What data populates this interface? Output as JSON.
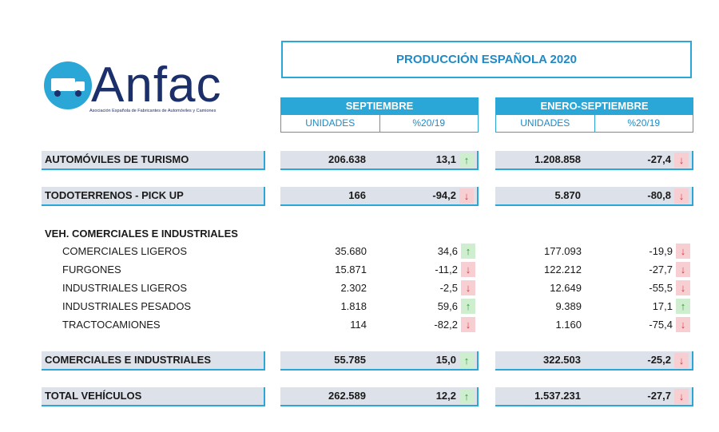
{
  "logo": {
    "name": "Anfac",
    "tagline": "Asociación Española de Fabricantes de Automóviles y Camiones"
  },
  "title": "PRODUCCIÓN ESPAÑOLA 2020",
  "groups": [
    {
      "label": "SEPTIEMBRE",
      "units": "UNIDADES",
      "pct": "%20/19"
    },
    {
      "label": "ENERO-SEPTIEMBRE",
      "units": "UNIDADES",
      "pct": "%20/19"
    }
  ],
  "colors": {
    "accent": "#2aa7d6",
    "band": "#dde1e9",
    "up": "#2e9a2e",
    "down": "#d9363e"
  },
  "rows": {
    "turismo": {
      "label": "AUTOMÓVILES DE TURISMO",
      "sep_units": "206.638",
      "sep_pct": "13,1",
      "sep_trend": "up",
      "ytd_units": "1.208.858",
      "ytd_pct": "-27,4",
      "ytd_trend": "down"
    },
    "todoterreno": {
      "label": "TODOTERRENOS - PICK UP",
      "sep_units": "166",
      "sep_pct": "-94,2",
      "sep_trend": "down",
      "ytd_units": "5.870",
      "ytd_pct": "-80,8",
      "ytd_trend": "down"
    },
    "vehcom_header": "VEH. COMERCIALES E INDUSTRIALES",
    "sub": [
      {
        "label": "COMERCIALES LIGEROS",
        "sep_units": "35.680",
        "sep_pct": "34,6",
        "sep_trend": "up",
        "ytd_units": "177.093",
        "ytd_pct": "-19,9",
        "ytd_trend": "down"
      },
      {
        "label": "FURGONES",
        "sep_units": "15.871",
        "sep_pct": "-11,2",
        "sep_trend": "down",
        "ytd_units": "122.212",
        "ytd_pct": "-27,7",
        "ytd_trend": "down"
      },
      {
        "label": "INDUSTRIALES LIGEROS",
        "sep_units": "2.302",
        "sep_pct": "-2,5",
        "sep_trend": "down",
        "ytd_units": "12.649",
        "ytd_pct": "-55,5",
        "ytd_trend": "down"
      },
      {
        "label": "INDUSTRIALES PESADOS",
        "sep_units": "1.818",
        "sep_pct": "59,6",
        "sep_trend": "up",
        "ytd_units": "9.389",
        "ytd_pct": "17,1",
        "ytd_trend": "up"
      },
      {
        "label": "TRACTOCAMIONES",
        "sep_units": "114",
        "sep_pct": "-82,2",
        "sep_trend": "down",
        "ytd_units": "1.160",
        "ytd_pct": "-75,4",
        "ytd_trend": "down"
      }
    ],
    "comind": {
      "label": "COMERCIALES E INDUSTRIALES",
      "sep_units": "55.785",
      "sep_pct": "15,0",
      "sep_trend": "up",
      "ytd_units": "322.503",
      "ytd_pct": "-25,2",
      "ytd_trend": "down"
    },
    "total": {
      "label": "TOTAL VEHÍCULOS",
      "sep_units": "262.589",
      "sep_pct": "12,2",
      "sep_trend": "up",
      "ytd_units": "1.537.231",
      "ytd_pct": "-27,7",
      "ytd_trend": "down"
    }
  }
}
